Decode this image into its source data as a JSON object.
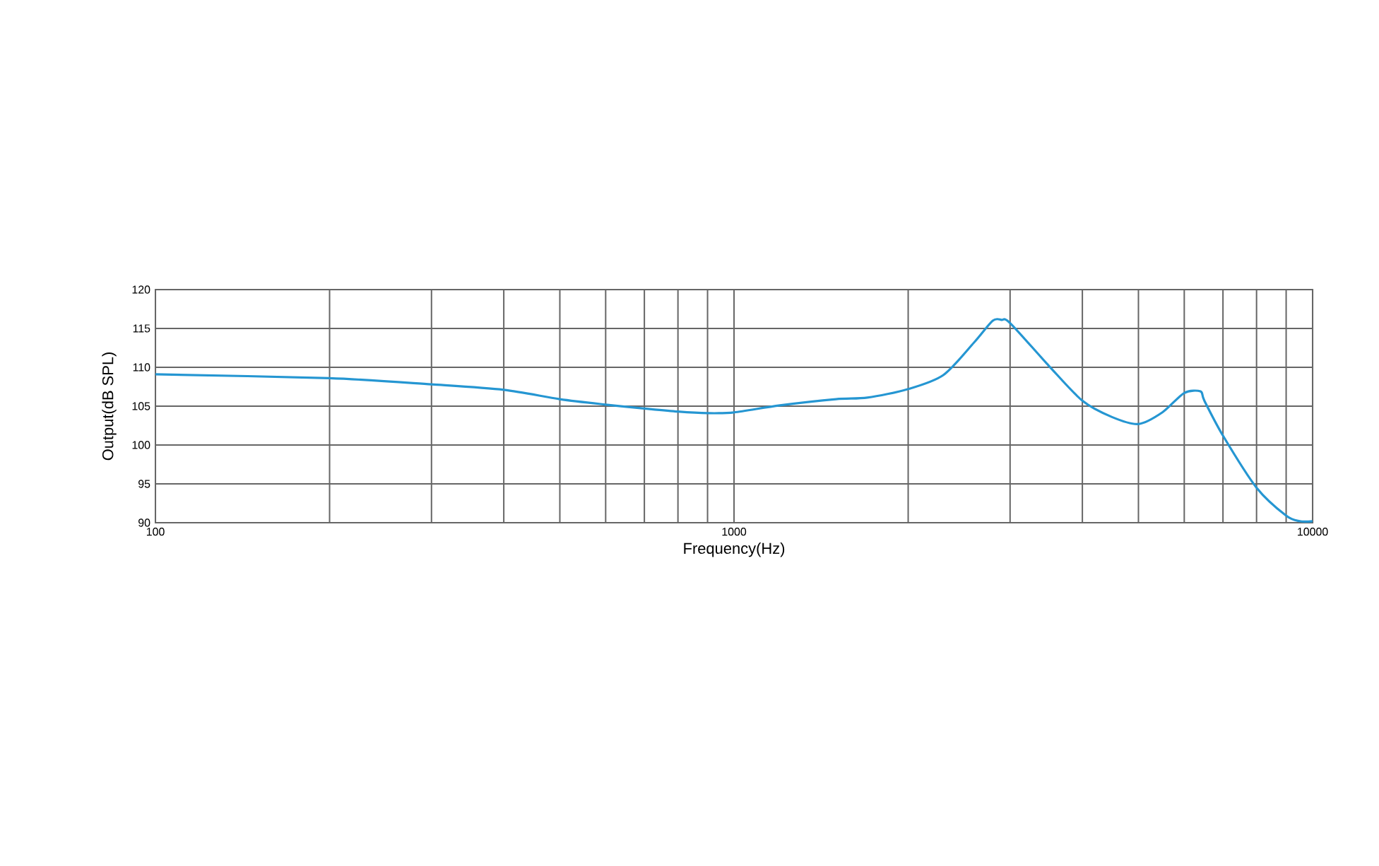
{
  "chart_data": {
    "type": "line",
    "xlabel": "Frequency(Hz)",
    "ylabel": "Output(dB SPL)",
    "log": "x",
    "grid": true,
    "xlim": [
      100,
      10000
    ],
    "xticks": [
      100,
      1000,
      10000
    ],
    "ylim": [
      90,
      120
    ],
    "yticks": [
      90,
      95,
      100,
      105,
      110,
      115,
      120
    ],
    "x": [
      100,
      200,
      300,
      400,
      500,
      600,
      700,
      800,
      900,
      1000,
      1200,
      1500,
      1700,
      2000,
      2300,
      2600,
      2800,
      2900,
      3000,
      3500,
      4000,
      4500,
      5000,
      5500,
      6000,
      6400,
      6500,
      7000,
      8000,
      9000,
      9500,
      10000
    ],
    "series": [
      {
        "color": "#2596d2",
        "values": [
          109.1,
          108.6,
          107.8,
          107.1,
          105.9,
          105.2,
          104.7,
          104.3,
          104.1,
          104.2,
          105.1,
          105.9,
          106.1,
          107.2,
          109.0,
          113.2,
          116.0,
          116.1,
          115.7,
          110.2,
          105.7,
          103.6,
          102.7,
          104.2,
          106.7,
          106.9,
          105.7,
          101.2,
          94.5,
          90.9,
          90.2,
          90.2
        ]
      }
    ]
  }
}
